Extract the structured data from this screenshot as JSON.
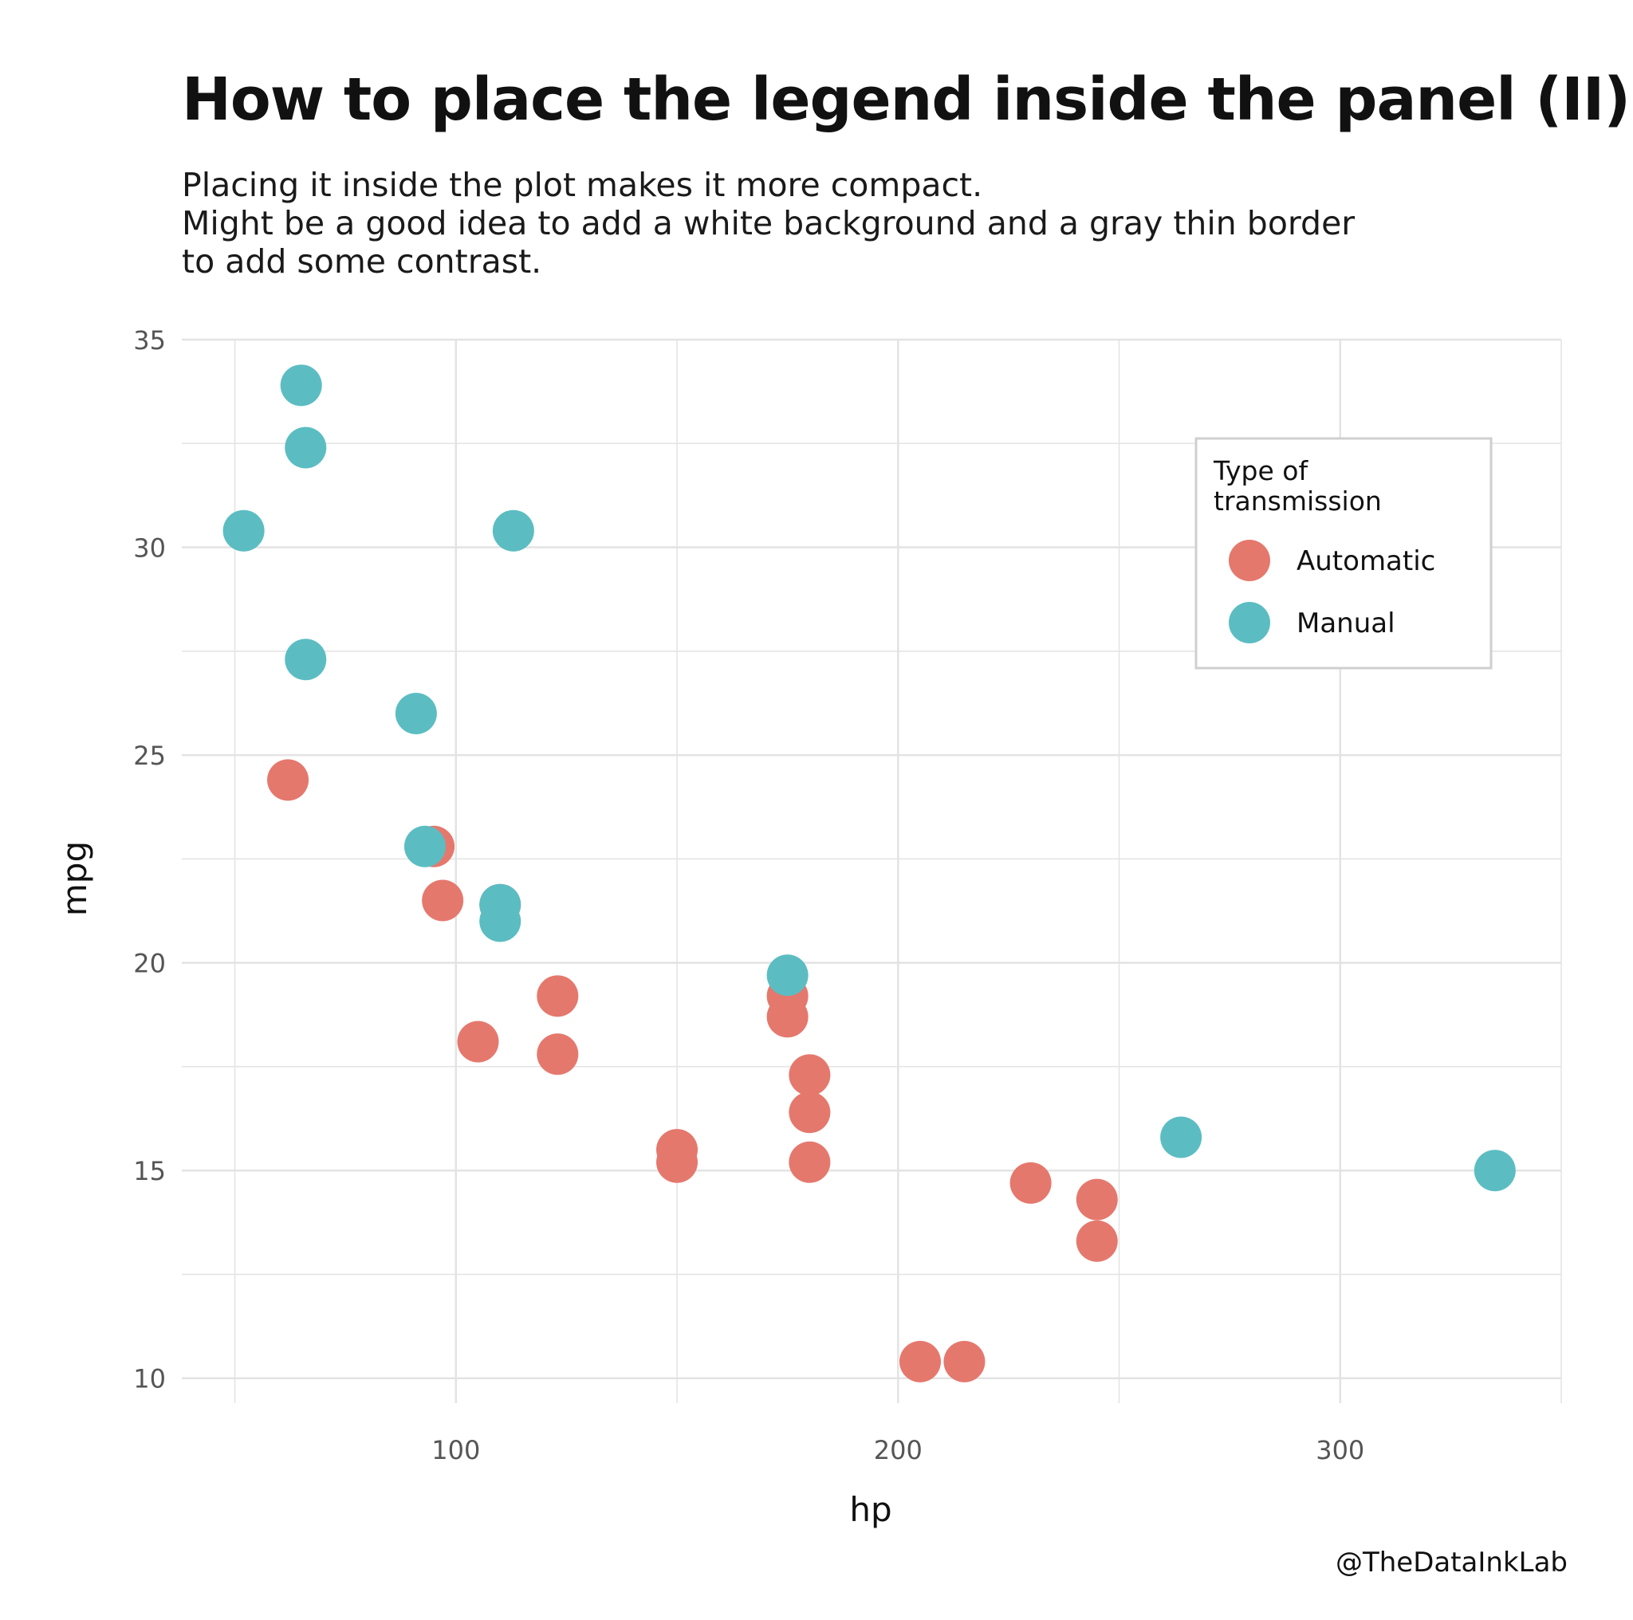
{
  "header": {
    "title": "How to place the legend inside the panel (II)",
    "subtitle": "Placing it inside the plot makes it more compact.\nMight be a good idea to add a white background and a gray thin border\nto add some contrast."
  },
  "caption": "@TheDataInkLab",
  "chart_data": {
    "type": "scatter",
    "xlabel": "hp",
    "ylabel": "mpg",
    "xlim": [
      38,
      350
    ],
    "ylim": [
      9.4,
      35
    ],
    "xticks": [
      100,
      200,
      300
    ],
    "yticks": [
      10,
      15,
      20,
      25,
      30,
      35
    ],
    "grid": true,
    "legend": {
      "title": "Type of\ntransmission",
      "placement": "top-right, inside panel"
    },
    "colors": {
      "grid": "#e3e3e3",
      "legend_border": "#cfcfcf"
    },
    "series": [
      {
        "name": "Automatic",
        "color": "#E5786D",
        "points": [
          [
            62,
            24.4
          ],
          [
            95,
            22.8
          ],
          [
            97,
            21.5
          ],
          [
            110,
            21.4
          ],
          [
            105,
            18.1
          ],
          [
            123,
            19.2
          ],
          [
            123,
            17.8
          ],
          [
            150,
            15.5
          ],
          [
            150,
            15.2
          ],
          [
            175,
            19.2
          ],
          [
            175,
            18.7
          ],
          [
            180,
            17.3
          ],
          [
            180,
            16.4
          ],
          [
            180,
            15.2
          ],
          [
            205,
            10.4
          ],
          [
            215,
            10.4
          ],
          [
            230,
            14.7
          ],
          [
            245,
            14.3
          ],
          [
            245,
            13.3
          ]
        ]
      },
      {
        "name": "Manual",
        "color": "#5BBDC2",
        "points": [
          [
            52,
            30.4
          ],
          [
            65,
            33.9
          ],
          [
            66,
            32.4
          ],
          [
            66,
            27.3
          ],
          [
            113,
            30.4
          ],
          [
            91,
            26.0
          ],
          [
            93,
            22.8
          ],
          [
            110,
            21.0
          ],
          [
            110,
            21.4
          ],
          [
            175,
            19.7
          ],
          [
            264,
            15.8
          ],
          [
            335,
            15.0
          ]
        ]
      }
    ]
  }
}
